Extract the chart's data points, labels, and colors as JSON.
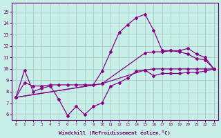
{
  "xlabel": "Windchill (Refroidissement éolien,°C)",
  "background_color": "#c8eee8",
  "grid_color": "#aacccc",
  "line_color": "#880088",
  "x_ticks": [
    0,
    1,
    2,
    3,
    4,
    5,
    6,
    7,
    8,
    9,
    10,
    11,
    12,
    13,
    14,
    15,
    16,
    17,
    18,
    19,
    20,
    21,
    22,
    23
  ],
  "y_ticks": [
    6,
    7,
    8,
    9,
    10,
    11,
    12,
    13,
    14,
    15
  ],
  "ylim": [
    5.5,
    15.8
  ],
  "xlim": [
    -0.5,
    23.5
  ],
  "series": [
    {
      "x": [
        0,
        1,
        2,
        3,
        4,
        5,
        6,
        7,
        8,
        9,
        10,
        11,
        12,
        13,
        14,
        15,
        16,
        17,
        18,
        19,
        20,
        21,
        22,
        23
      ],
      "y": [
        7.5,
        9.9,
        8.0,
        8.3,
        8.5,
        7.3,
        5.9,
        6.7,
        6.0,
        6.7,
        7.0,
        8.5,
        8.8,
        9.2,
        9.8,
        9.9,
        9.4,
        9.6,
        9.6,
        9.6,
        9.7,
        9.7,
        9.8,
        10.0
      ]
    },
    {
      "x": [
        0,
        1,
        2,
        3,
        4,
        5,
        6,
        7,
        8,
        9,
        10,
        11,
        12,
        13,
        14,
        15,
        16,
        17,
        18,
        19,
        20,
        21,
        22,
        23
      ],
      "y": [
        7.5,
        8.8,
        8.5,
        8.5,
        8.6,
        8.6,
        8.6,
        8.6,
        8.6,
        8.6,
        9.8,
        11.5,
        13.2,
        13.9,
        14.5,
        14.8,
        13.4,
        11.6,
        11.6,
        11.5,
        11.3,
        10.9,
        10.8,
        10.0
      ]
    },
    {
      "x": [
        0,
        10,
        15,
        16,
        17,
        18,
        19,
        20,
        21,
        22,
        23
      ],
      "y": [
        7.5,
        8.7,
        11.4,
        11.5,
        11.5,
        11.6,
        11.6,
        11.8,
        11.3,
        11.0,
        10.0
      ]
    },
    {
      "x": [
        0,
        10,
        15,
        16,
        17,
        18,
        19,
        20,
        21,
        22,
        23
      ],
      "y": [
        7.5,
        8.7,
        9.9,
        10.0,
        10.0,
        10.0,
        10.0,
        10.0,
        10.0,
        10.0,
        10.0
      ]
    }
  ]
}
